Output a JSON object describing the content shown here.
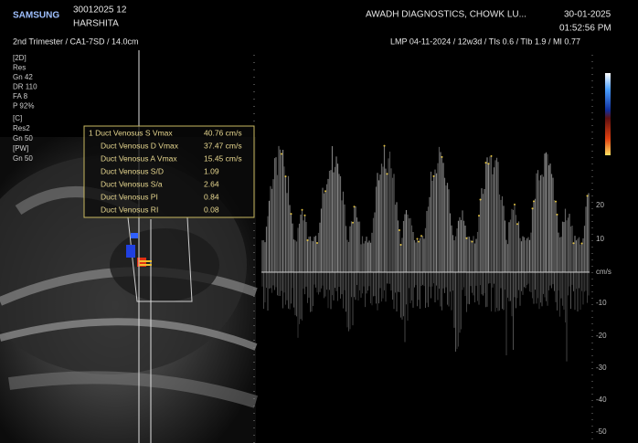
{
  "header": {
    "brand": "SAMSUNG",
    "patient_id": "30012025 12",
    "patient_name": "HARSHITA",
    "institution": "AWADH DIAGNOSTICS, CHOWK LU...",
    "date": "30-01-2025",
    "time": "01:52:56 PM",
    "preset": "2nd Trimester / CA1-7SD / 14.0cm",
    "exam_info": "LMP 04-11-2024 / 12w3d / TIs 0.6 / TIb 1.9 / MI 0.77"
  },
  "params": [
    "[2D]",
    "Res",
    "Gn 42",
    "DR 110",
    "FA 8",
    "P 92%",
    "[C]",
    "Res2",
    "Gn 50",
    "[PW]",
    "Gn 50"
  ],
  "measurements": [
    [
      "1  Duct Venosus S Vmax",
      "40.76 cm/s"
    ],
    [
      "Duct Venosus D Vmax",
      "37.47 cm/s"
    ],
    [
      "Duct Venosus A Vmax",
      "15.45 cm/s"
    ],
    [
      "Duct Venosus S/D",
      "1.09"
    ],
    [
      "Duct Venosus S/a",
      "2.64"
    ],
    [
      "Duct Venosus PI",
      "0.84"
    ],
    [
      "Duct Venosus RI",
      "0.08"
    ]
  ],
  "scale": [
    "20",
    "10",
    "cm/s",
    "-10",
    "-20",
    "-30",
    "-40",
    "-50"
  ]
}
